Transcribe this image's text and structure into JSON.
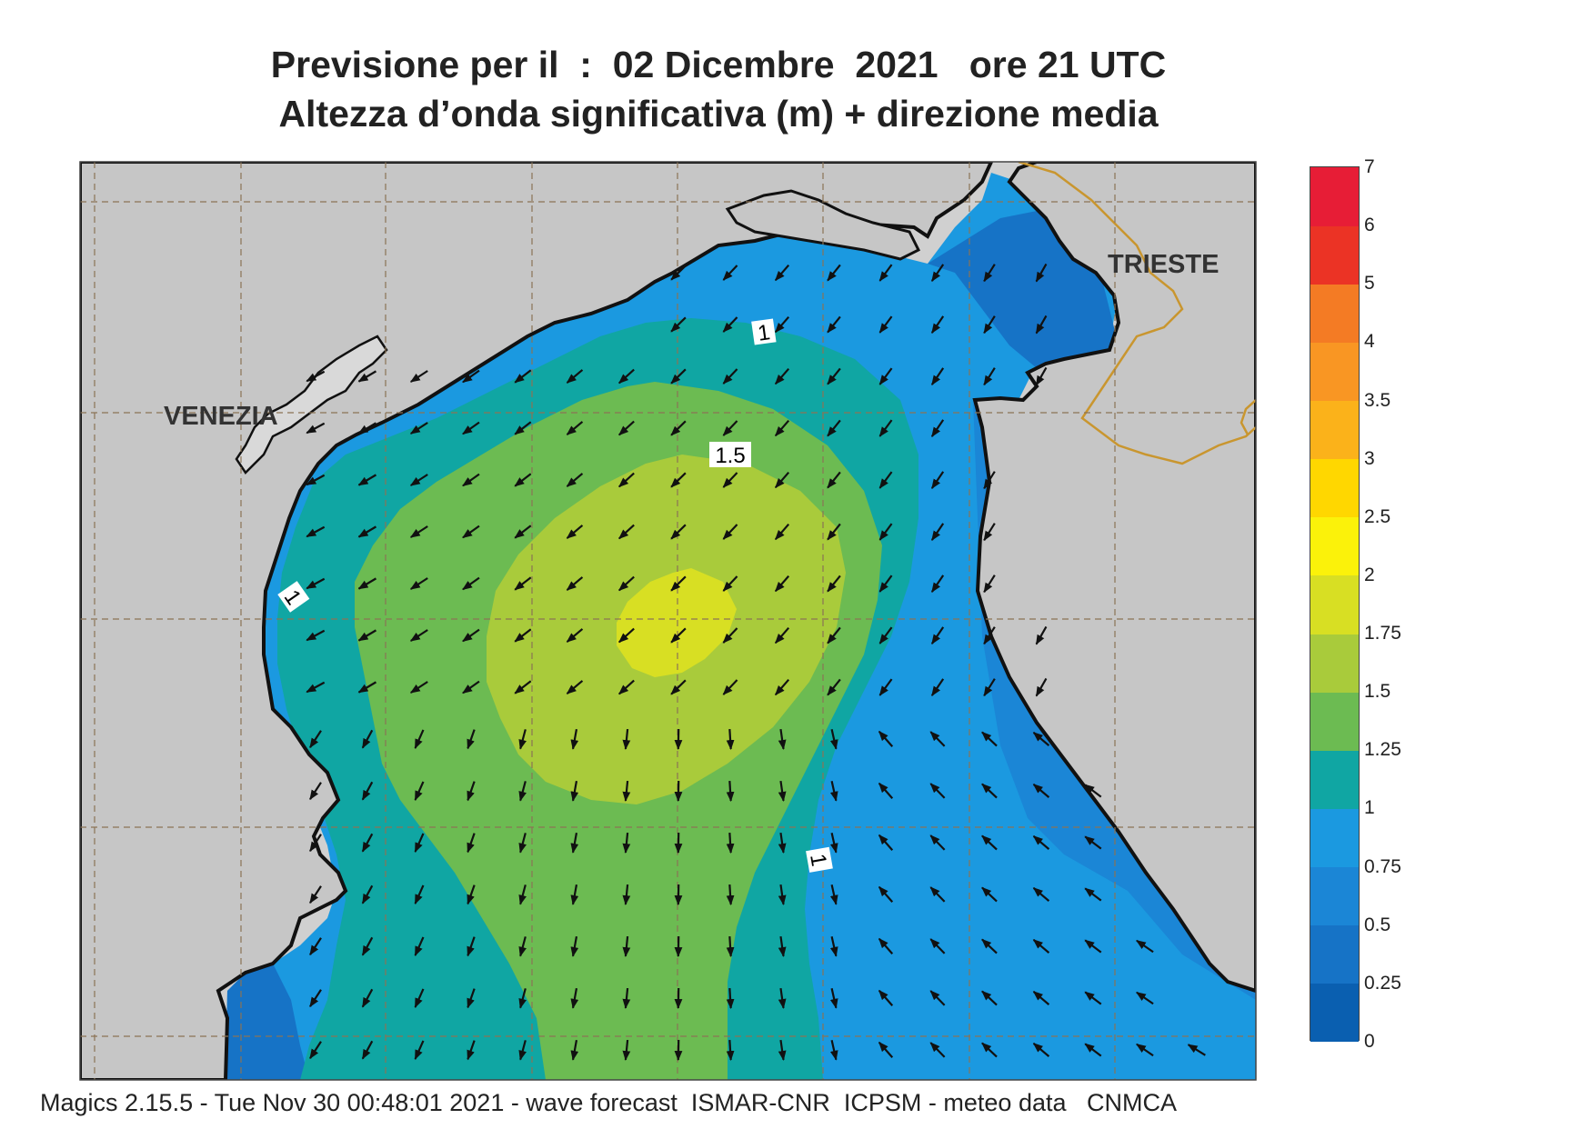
{
  "title": {
    "line1": "Previsione per il  :  02 Dicembre  2021   ore 21 UTC",
    "line2": "Altezza d’onda significativa (m) + direzione media"
  },
  "map": {
    "land_color": "#d0d0d0",
    "frame_color": "#444444",
    "labels": {
      "venezia": "VENEZIA",
      "trieste": "TRIESTE"
    },
    "contour_labels": [
      "1",
      "1.5",
      "1",
      "1"
    ]
  },
  "legend": {
    "stops": [
      {
        "label": "0",
        "color": "#0a5fb0"
      },
      {
        "label": "0.25",
        "color": "#1673c6"
      },
      {
        "label": "0.5",
        "color": "#1b86d6"
      },
      {
        "label": "0.75",
        "color": "#1b99e0"
      },
      {
        "label": "1",
        "color": "#10a6a3"
      },
      {
        "label": "1.25",
        "color": "#6cbb52"
      },
      {
        "label": "1.5",
        "color": "#a9cb3b"
      },
      {
        "label": "1.75",
        "color": "#d8df23"
      },
      {
        "label": "2",
        "color": "#fbf20a"
      },
      {
        "label": "2.5",
        "color": "#ffd700"
      },
      {
        "label": "3",
        "color": "#fbb21a"
      },
      {
        "label": "3.5",
        "color": "#f99623"
      },
      {
        "label": "4",
        "color": "#f47b24"
      },
      {
        "label": "5",
        "color": "#eb3325"
      },
      {
        "label": "6",
        "color": "#e71d36"
      },
      {
        "label": "7",
        "color": "#ec1c5a"
      }
    ]
  },
  "footer": "Magics 2.15.5 - Tue Nov 30 00:48:01 2021 - wave forecast  ISMAR-CNR  ICPSM - meteo data   CNMCA"
}
